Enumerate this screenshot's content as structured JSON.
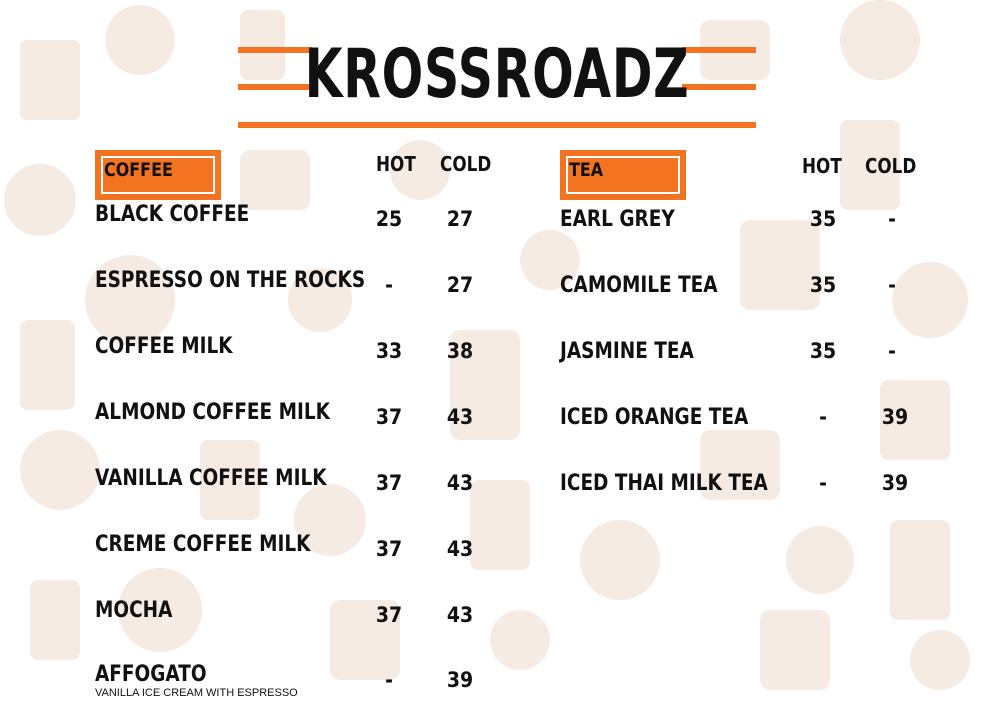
{
  "brand": {
    "name": "KROSSROADZ"
  },
  "colors": {
    "accent": "#f37321",
    "text": "#111111",
    "pattern": "#f4e8de"
  },
  "coffee": {
    "header": "COFFEE",
    "hot_label": "HOT",
    "cold_label": "COLD",
    "items": [
      {
        "name": "BLACK COFFEE",
        "hot": "25",
        "cold": "27"
      },
      {
        "name": "ESPRESSO ON THE ROCKS",
        "hot": "-",
        "cold": "27"
      },
      {
        "name": "COFFEE MILK",
        "hot": "33",
        "cold": "38"
      },
      {
        "name": "ALMOND COFFEE MILK",
        "hot": "37",
        "cold": "43"
      },
      {
        "name": "VANILLA COFFEE MILK",
        "hot": "37",
        "cold": "43"
      },
      {
        "name": "CREME COFFEE MILK",
        "hot": "37",
        "cold": "43"
      },
      {
        "name": "MOCHA",
        "hot": "37",
        "cold": "43"
      },
      {
        "name": "AFFOGATO",
        "hot": "-",
        "cold": "39",
        "note": "VANILLA ICE CREAM WITH ESPRESSO"
      }
    ]
  },
  "tea": {
    "header": "TEA",
    "hot_label": "HOT",
    "cold_label": "COLD",
    "items": [
      {
        "name": "EARL GREY",
        "hot": "35",
        "cold": "-"
      },
      {
        "name": "CAMOMILE TEA",
        "hot": "35",
        "cold": "-"
      },
      {
        "name": "JASMINE TEA",
        "hot": "35",
        "cold": "-"
      },
      {
        "name": "ICED ORANGE TEA",
        "hot": "-",
        "cold": "39"
      },
      {
        "name": "ICED THAI MILK TEA",
        "hot": "-",
        "cold": "39"
      }
    ]
  }
}
